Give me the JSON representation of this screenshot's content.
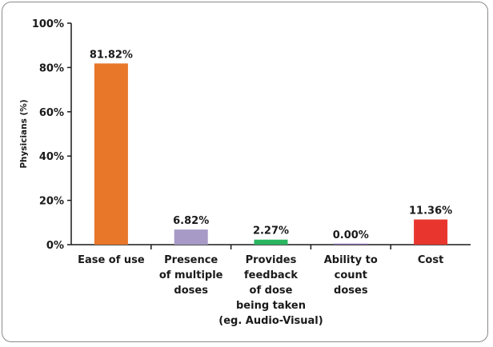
{
  "chart_data": {
    "type": "bar",
    "ylabel": "Physicians (%)",
    "xlabel": "",
    "title": "",
    "ylim": [
      0,
      100
    ],
    "yticks": [
      0,
      20,
      40,
      60,
      80,
      100
    ],
    "ytick_labels": [
      "0%",
      "20%",
      "40%",
      "60%",
      "80%",
      "100%"
    ],
    "grid": false,
    "categories": [
      [
        "Ease of use"
      ],
      [
        "Presence",
        "of multiple",
        "doses"
      ],
      [
        "Provides",
        "feedback",
        "of dose",
        "being taken",
        "(eg. Audio-Visual)"
      ],
      [
        "Ability to",
        "count",
        "doses"
      ],
      [
        "Cost"
      ]
    ],
    "values": [
      81.82,
      6.82,
      2.27,
      0.0,
      11.36
    ],
    "data_labels": [
      "81.82%",
      "6.82%",
      "2.27%",
      "0.00%",
      "11.36%"
    ],
    "colors": [
      "#e8772a",
      "#a79ac6",
      "#2bb561",
      "#7b5ea8",
      "#e8362e"
    ]
  }
}
